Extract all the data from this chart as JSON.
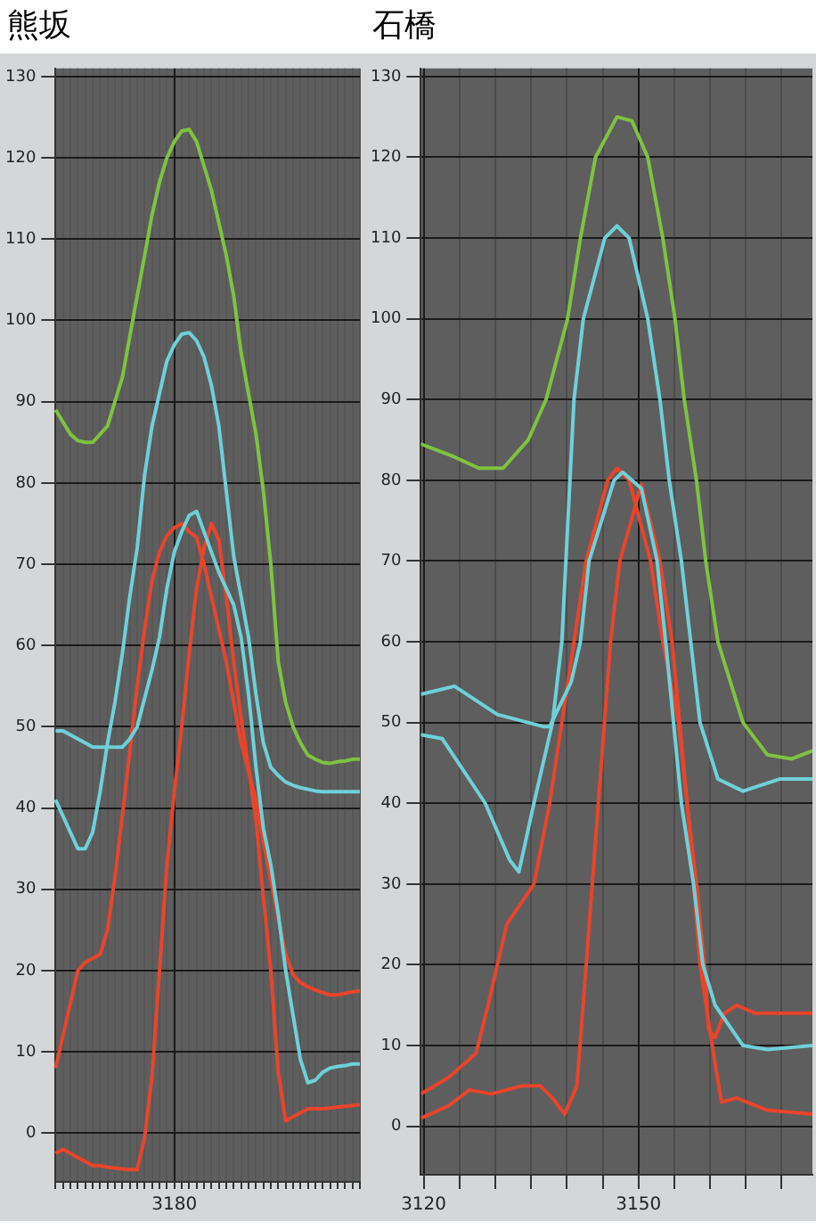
{
  "chart_data": [
    {
      "type": "line",
      "title": "熊坂",
      "categories": [
        null,
        null,
        null,
        null,
        null,
        null,
        null,
        null,
        null,
        null,
        null,
        null,
        null,
        null,
        null,
        null,
        "3180",
        null,
        null,
        null,
        null,
        null,
        null,
        null,
        null,
        null,
        null,
        null,
        null,
        null,
        null,
        null,
        null,
        null,
        null,
        null,
        null,
        null,
        null,
        null,
        null,
        null
      ],
      "ylim": [
        -6,
        131
      ],
      "yticks": [
        0,
        10,
        20,
        30,
        40,
        50,
        60,
        70,
        80,
        90,
        100,
        110,
        120,
        130
      ],
      "grid": true,
      "legend": false,
      "marker": "none",
      "line_style": "solid",
      "series": [
        {
          "color": "#7fc241",
          "values": [
            89,
            87.5,
            86,
            85.2,
            85,
            85,
            86,
            87,
            90,
            93,
            98,
            103,
            108,
            113,
            117,
            120,
            122,
            123.3,
            123.5,
            122,
            119,
            116,
            112,
            108,
            103,
            96,
            91,
            86,
            79,
            70,
            58,
            53,
            50,
            48,
            46.5,
            46,
            45.6,
            45.5,
            45.7,
            45.8,
            46,
            46
          ]
        },
        {
          "color": "#6fd0d8",
          "values": [
            41,
            39,
            37,
            35,
            35,
            37,
            42,
            48,
            53,
            59,
            66,
            72,
            81,
            87,
            91,
            95,
            97,
            98.3,
            98.5,
            97.5,
            95.5,
            92,
            87,
            79,
            71,
            66,
            61,
            54,
            48,
            45,
            44,
            43.2,
            42.8,
            42.5,
            42.3,
            42.1,
            42,
            42,
            42,
            42,
            42,
            42
          ]
        },
        {
          "color": "#6fd0d8",
          "values": [
            49.5,
            49.5,
            49,
            48.5,
            48,
            47.5,
            47.5,
            47.5,
            47.5,
            47.5,
            48.5,
            50,
            53.5,
            57,
            61,
            67,
            71.5,
            74,
            76,
            76.5,
            74,
            71.5,
            69,
            67,
            65,
            61,
            54,
            45,
            37.5,
            33,
            27,
            20,
            14.5,
            9,
            6.2,
            6.5,
            7.5,
            8,
            8.2,
            8.3,
            8.5,
            8.5
          ]
        },
        {
          "color": "#e8452c",
          "values": [
            -2.5,
            -2,
            -2.5,
            -3,
            -3.5,
            -4,
            -4,
            -4.2,
            -4.3,
            -4.4,
            -4.5,
            -4.5,
            -0.5,
            7,
            20,
            33,
            42,
            50,
            59,
            67,
            72,
            75,
            73,
            66,
            58,
            51,
            45,
            38.5,
            29,
            20,
            7.5,
            1.5,
            2,
            2.5,
            3,
            3,
            3,
            3.1,
            3.2,
            3.3,
            3.4,
            3.5
          ]
        },
        {
          "color": "#e8452c",
          "values": [
            8,
            12,
            16,
            20,
            21,
            21.5,
            22,
            25,
            31.5,
            39,
            47,
            55,
            62,
            68,
            71.5,
            73.5,
            74.5,
            75,
            74,
            73.3,
            70,
            66,
            62,
            58,
            53,
            48,
            44.5,
            41,
            36,
            31,
            26.5,
            22,
            19.5,
            18.5,
            18,
            17.6,
            17.3,
            17,
            17,
            17.2,
            17.4,
            17.5
          ]
        }
      ]
    },
    {
      "type": "line",
      "title": "石橋",
      "xlim": [
        3119.6,
        3174.3
      ],
      "xticks": [
        3120,
        {
          "value": 3125,
          "label": null
        },
        {
          "value": 3130,
          "label": null
        },
        {
          "value": 3135,
          "label": null
        },
        {
          "value": 3140,
          "label": null
        },
        {
          "value": 3145,
          "label": null
        },
        3150,
        {
          "value": 3155,
          "label": null
        },
        {
          "value": 3160,
          "label": null
        },
        {
          "value": 3165,
          "label": null
        },
        {
          "value": 3170,
          "label": null
        }
      ],
      "ylim": [
        -6,
        131
      ],
      "yticks": [
        0,
        10,
        20,
        30,
        40,
        50,
        60,
        70,
        80,
        90,
        100,
        110,
        120,
        130
      ],
      "grid": true,
      "legend": false,
      "marker": "none",
      "line_style": "solid",
      "series": [
        {
          "color": "#7fc241",
          "x": [
            3119.6,
            3124,
            3127.7,
            3131.1,
            3134.6,
            3137.1,
            3140.1,
            3141.9,
            3144,
            3147,
            3149.1,
            3151.3,
            3153.4,
            3155.1,
            3156.4,
            3158.1,
            3159.4,
            3161.1,
            3164.6,
            3168,
            3171.4,
            3174.3
          ],
          "values": [
            84.5,
            83,
            81.5,
            81.5,
            85,
            90,
            100,
            110,
            120,
            125,
            124.5,
            120,
            110,
            100,
            90,
            80,
            70,
            60,
            50,
            46,
            45.5,
            46.5
          ]
        },
        {
          "color": "#6fd0d8",
          "x": [
            3119.6,
            3122.6,
            3128.6,
            3132,
            3133.3,
            3135.4,
            3138,
            3139.3,
            3141,
            3142.3,
            3145.3,
            3147,
            3148.7,
            3151.3,
            3153,
            3154.3,
            3156,
            3157.3,
            3158.6,
            3161.1,
            3164.6,
            3169.7,
            3174.3
          ],
          "values": [
            48.5,
            48,
            40,
            33,
            31.5,
            40,
            50,
            60,
            90,
            100,
            110,
            111.5,
            110,
            100,
            90,
            80,
            70,
            60,
            50,
            43,
            41.5,
            43,
            43
          ]
        },
        {
          "color": "#6fd0d8",
          "x": [
            3119.6,
            3124.3,
            3130.3,
            3136.7,
            3137.6,
            3140.6,
            3141.9,
            3143.1,
            3146.6,
            3147.8,
            3150.4,
            3152.6,
            3153.8,
            3156,
            3157.7,
            3159,
            3160.7,
            3164.6,
            3168,
            3174.3
          ],
          "values": [
            53.5,
            54.5,
            51,
            49.5,
            49.5,
            55,
            60,
            70,
            80,
            81,
            79,
            70,
            60,
            40,
            30,
            20,
            15,
            10,
            9.5,
            10
          ]
        },
        {
          "color": "#e8452c",
          "x": [
            3119.6,
            3123.4,
            3127.3,
            3129,
            3131.6,
            3135.4,
            3137.6,
            3139.3,
            3141,
            3142.7,
            3145.7,
            3147,
            3148.7,
            3151.7,
            3153.4,
            3155.6,
            3156.8,
            3158.1,
            3159.2,
            3159.8,
            3160.7,
            3162,
            3163.7,
            3166.3,
            3174.3
          ],
          "values": [
            4,
            6,
            9,
            15,
            25,
            30,
            40,
            50,
            60,
            70,
            80,
            81.5,
            80,
            70,
            60,
            50,
            40,
            30,
            20,
            12,
            11,
            14,
            15,
            14,
            14
          ]
        },
        {
          "color": "#e8452c",
          "x": [
            3119.6,
            3123.4,
            3126.4,
            3129.4,
            3133.7,
            3136.3,
            3138,
            3139.7,
            3141.4,
            3142.7,
            3144.4,
            3146.1,
            3147.4,
            3150.4,
            3153,
            3154.7,
            3156.8,
            3158.6,
            3160.3,
            3161.6,
            3163.7,
            3168,
            3174.3
          ],
          "values": [
            1,
            2.5,
            4.5,
            4,
            5,
            5,
            3.5,
            1.5,
            5,
            20,
            40,
            60,
            70,
            79.5,
            70,
            60,
            40,
            20,
            10,
            3,
            3.5,
            2,
            1.5
          ]
        }
      ]
    }
  ]
}
